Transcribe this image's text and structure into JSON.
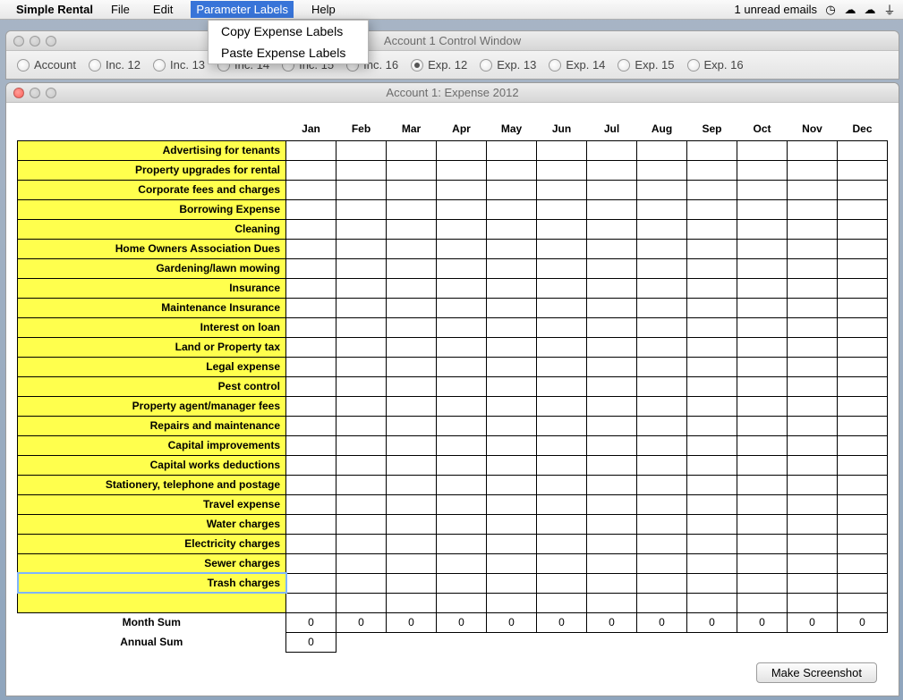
{
  "menubar": {
    "app_name": "Simple Rental",
    "items": [
      "File",
      "Edit",
      "Parameter Labels",
      "Help"
    ],
    "active_index": 2,
    "tray_text": "1 unread emails"
  },
  "dropdown": {
    "items": [
      "Copy Expense Labels",
      "Paste Expense Labels"
    ]
  },
  "control_window": {
    "title": "Account 1 Control Window",
    "radios": [
      "Account",
      "Inc. 12",
      "Inc. 13",
      "Inc. 14",
      "Inc. 15",
      "Inc. 16",
      "Exp. 12",
      "Exp. 13",
      "Exp. 14",
      "Exp. 15",
      "Exp. 16"
    ],
    "checked_index": 6
  },
  "expense_window": {
    "title": "Account 1: Expense 2012",
    "months": [
      "Jan",
      "Feb",
      "Mar",
      "Apr",
      "May",
      "Jun",
      "Jul",
      "Aug",
      "Sep",
      "Oct",
      "Nov",
      "Dec"
    ],
    "rows": [
      "Advertising for tenants",
      "Property upgrades for rental",
      "Corporate fees and charges",
      "Borrowing Expense",
      "Cleaning",
      "Home Owners Association Dues",
      "Gardening/lawn mowing",
      "Insurance",
      "Maintenance Insurance",
      "Interest on loan",
      "Land or Property tax",
      "Legal expense",
      "Pest control",
      "Property agent/manager fees",
      "Repairs and maintenance",
      "Capital improvements",
      "Capital works deductions",
      "Stationery, telephone and postage",
      "Travel expense",
      "Water charges",
      "Electricity charges",
      "Sewer charges",
      "Trash charges"
    ],
    "empty_trailing_rows": 1,
    "selected_row_index": 22,
    "month_sum_label": "Month Sum",
    "month_sums": [
      "0",
      "0",
      "0",
      "0",
      "0",
      "0",
      "0",
      "0",
      "0",
      "0",
      "0",
      "0"
    ],
    "annual_sum_label": "Annual Sum",
    "annual_sum": "0",
    "button_label": "Make Screenshot",
    "colors": {
      "row_label_bg": "#ffff4d",
      "grid_border": "#000000",
      "selection_outline": "#7fb5ff"
    }
  }
}
